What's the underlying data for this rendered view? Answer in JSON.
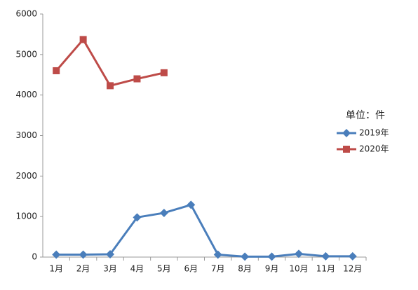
{
  "chart_data": {
    "type": "line",
    "categories": [
      "1月",
      "2月",
      "3月",
      "4月",
      "5月",
      "6月",
      "7月",
      "8月",
      "9月",
      "10月",
      "11月",
      "12月"
    ],
    "series": [
      {
        "name": "2019年",
        "color": "#4a7ebb",
        "marker": "diamond",
        "values": [
          60,
          60,
          70,
          980,
          1090,
          1290,
          60,
          10,
          10,
          80,
          20,
          20
        ]
      },
      {
        "name": "2020年",
        "color": "#be4b48",
        "marker": "square",
        "values": [
          4600,
          5370,
          4230,
          4400,
          4550,
          null,
          null,
          null,
          null,
          null,
          null,
          null
        ]
      }
    ],
    "ylim": [
      0,
      6000
    ],
    "yticks": [
      0,
      1000,
      2000,
      3000,
      4000,
      5000,
      6000
    ],
    "grid": false,
    "legend_title": "单位：件",
    "legend": "right"
  }
}
